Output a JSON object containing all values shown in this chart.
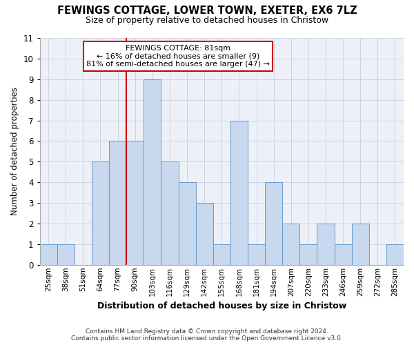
{
  "title": "FEWINGS COTTAGE, LOWER TOWN, EXETER, EX6 7LZ",
  "subtitle": "Size of property relative to detached houses in Christow",
  "xlabel": "Distribution of detached houses by size in Christow",
  "ylabel": "Number of detached properties",
  "categories": [
    "25sqm",
    "38sqm",
    "51sqm",
    "64sqm",
    "77sqm",
    "90sqm",
    "103sqm",
    "116sqm",
    "129sqm",
    "142sqm",
    "155sqm",
    "168sqm",
    "181sqm",
    "194sqm",
    "207sqm",
    "220sqm",
    "233sqm",
    "246sqm",
    "259sqm",
    "272sqm",
    "285sqm"
  ],
  "values": [
    1,
    1,
    0,
    5,
    6,
    6,
    9,
    5,
    4,
    3,
    1,
    7,
    1,
    4,
    2,
    1,
    2,
    1,
    2,
    0,
    1
  ],
  "bar_color": "#c8d8ee",
  "bar_edge_color": "#6699cc",
  "vline_x_index": 4,
  "vline_color": "#cc0000",
  "annotation_title": "FEWINGS COTTAGE: 81sqm",
  "annotation_line1": "← 16% of detached houses are smaller (9)",
  "annotation_line2": "81% of semi-detached houses are larger (47) →",
  "annotation_box_color": "#cc0000",
  "ylim": [
    0,
    11
  ],
  "yticks": [
    0,
    1,
    2,
    3,
    4,
    5,
    6,
    7,
    8,
    9,
    10,
    11
  ],
  "grid_color": "#c8cfe0",
  "bg_color": "#eef0f8",
  "footnote1": "Contains HM Land Registry data © Crown copyright and database right 2024.",
  "footnote2": "Contains public sector information licensed under the Open Government Licence v3.0."
}
